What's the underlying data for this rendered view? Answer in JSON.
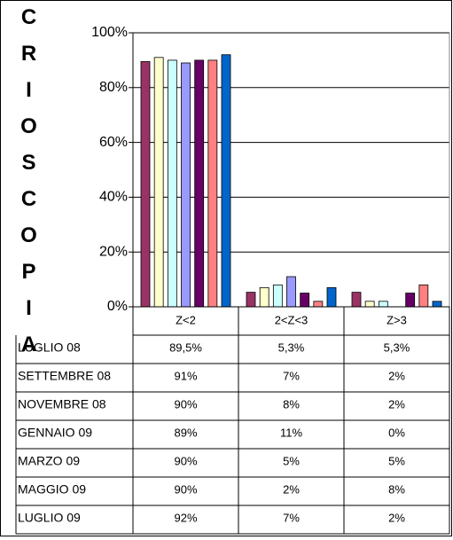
{
  "chart_data": {
    "type": "bar",
    "ylabel": "CRIOSCOPIA",
    "categories": [
      "Z<2",
      "2<Z<3",
      "Z>3"
    ],
    "series": [
      {
        "name": "LUGLIO 08",
        "color": "#993366",
        "values": [
          89.5,
          5.3,
          5.3
        ],
        "value_labels": [
          "89,5%",
          "5,3%",
          "5,3%"
        ]
      },
      {
        "name": "SETTEMBRE 08",
        "color": "#FFFFCC",
        "values": [
          91,
          7,
          2
        ],
        "value_labels": [
          "91%",
          "7%",
          "2%"
        ]
      },
      {
        "name": "NOVEMBRE 08",
        "color": "#CCFFFF",
        "values": [
          90,
          8,
          2
        ],
        "value_labels": [
          "90%",
          "8%",
          "2%"
        ]
      },
      {
        "name": "GENNAIO 09",
        "color": "#9999FF",
        "values": [
          89,
          11,
          0
        ],
        "value_labels": [
          "89%",
          "11%",
          "0%"
        ]
      },
      {
        "name": "MARZO 09",
        "color": "#660066",
        "values": [
          90,
          5,
          5
        ],
        "value_labels": [
          "90%",
          "5%",
          "5%"
        ]
      },
      {
        "name": "MAGGIO 09",
        "color": "#FF8080",
        "values": [
          90,
          2,
          8
        ],
        "value_labels": [
          "90%",
          "2%",
          "8%"
        ]
      },
      {
        "name": "LUGLIO 09",
        "color": "#0066CC",
        "values": [
          92,
          7,
          2
        ],
        "value_labels": [
          "92%",
          "7%",
          "2%"
        ]
      }
    ],
    "ylim": [
      0,
      100
    ],
    "yticks": [
      {
        "value": 0,
        "label": "0%"
      },
      {
        "value": 20,
        "label": "20%"
      },
      {
        "value": 40,
        "label": "40%"
      },
      {
        "value": 60,
        "label": "60%"
      },
      {
        "value": 80,
        "label": "80%"
      },
      {
        "value": 100,
        "label": "100%"
      }
    ],
    "grid": true
  }
}
